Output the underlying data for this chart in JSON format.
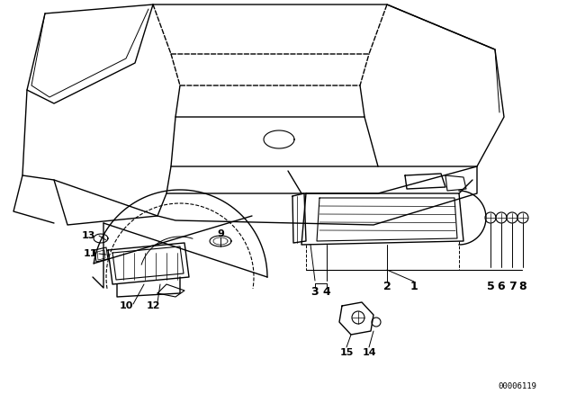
{
  "bg_color": "#ffffff",
  "line_color": "#000000",
  "fig_width": 6.4,
  "fig_height": 4.48,
  "dpi": 100,
  "diagram_id": "00006119"
}
